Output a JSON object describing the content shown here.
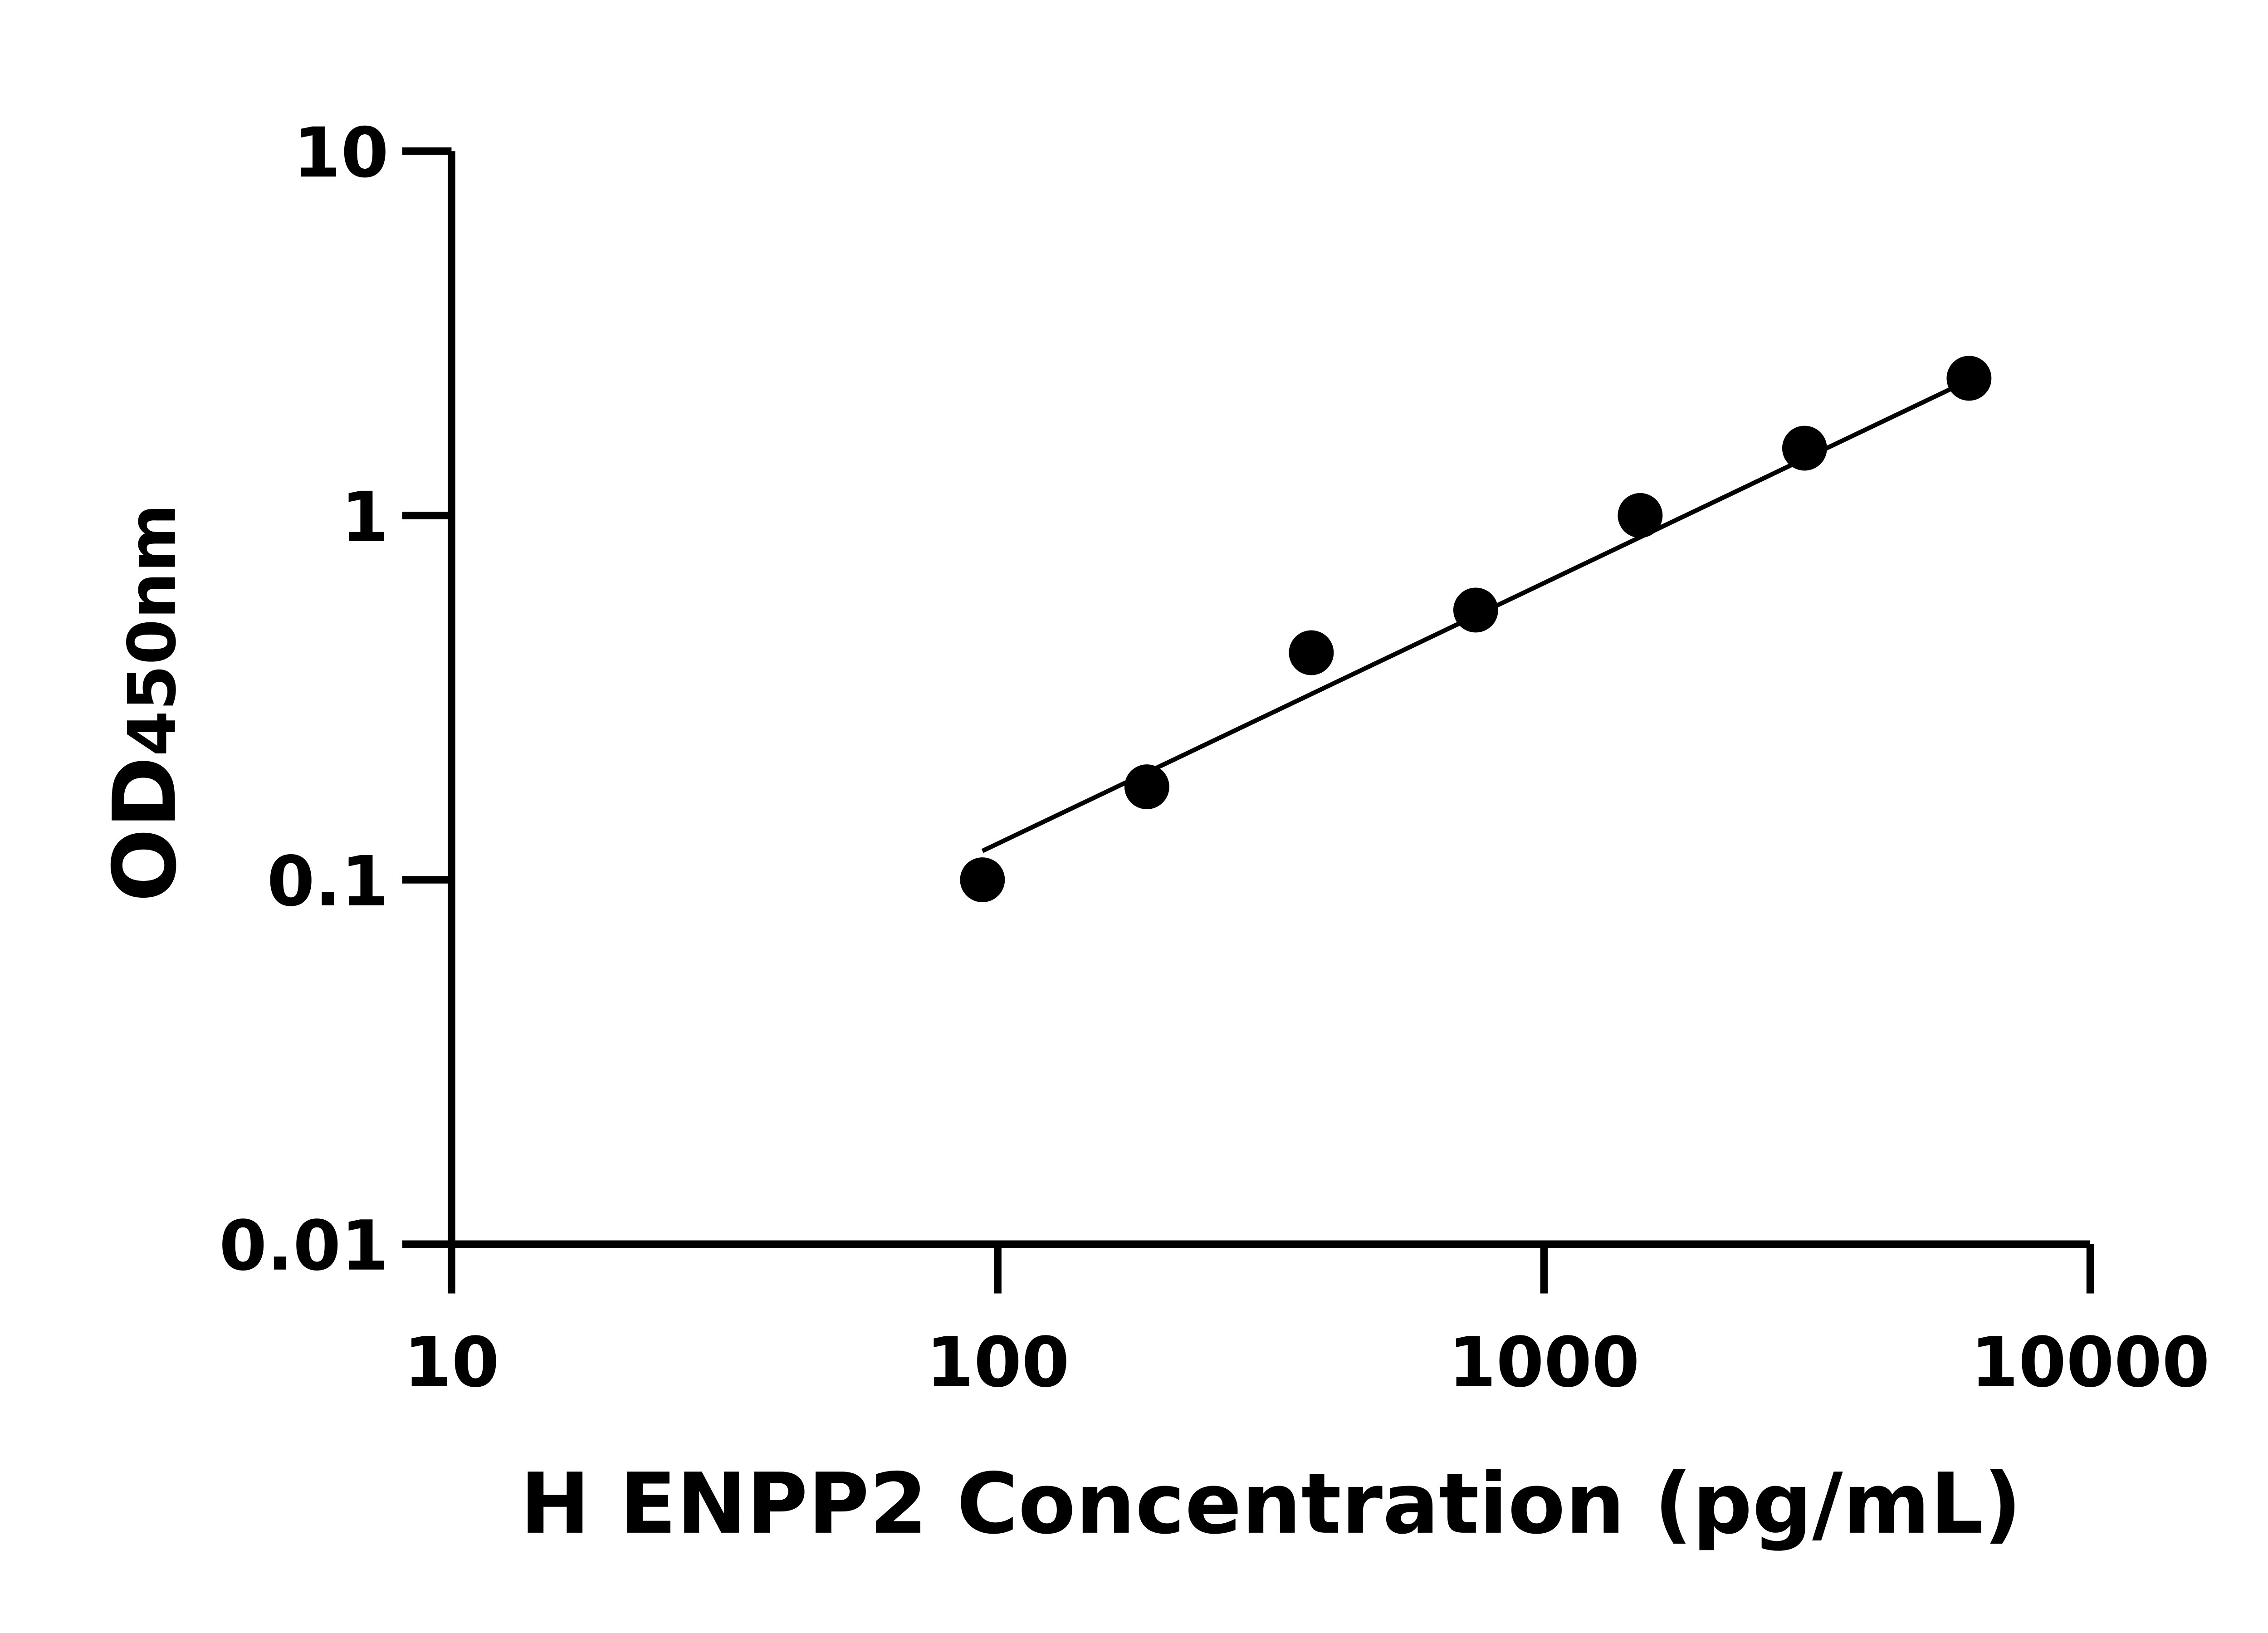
{
  "chart_data": {
    "type": "scatter",
    "title": "",
    "xlabel": "H ENPP2 Concentration (pg/mL)",
    "ylabel_main": "OD",
    "ylabel_sub": "450nm",
    "xscale": "log",
    "yscale": "log",
    "xlim": [
      10,
      10000
    ],
    "ylim": [
      0.01,
      10
    ],
    "xticks": [
      "10",
      "100",
      "1000",
      "10000"
    ],
    "yticks": [
      "0.01",
      "0.1",
      "1",
      "10"
    ],
    "grid": false,
    "legend": "none",
    "points": [
      {
        "x": 93.75,
        "y": 0.1
      },
      {
        "x": 187.5,
        "y": 0.18
      },
      {
        "x": 375,
        "y": 0.42
      },
      {
        "x": 750,
        "y": 0.55
      },
      {
        "x": 1500,
        "y": 1.0
      },
      {
        "x": 3000,
        "y": 1.53
      },
      {
        "x": 6000,
        "y": 2.38
      }
    ],
    "fit_line": [
      {
        "x": 93.75,
        "y": 0.12
      },
      {
        "x": 6000,
        "y": 2.35
      }
    ],
    "colors": {
      "points": "#000000",
      "line": "#000000",
      "axes": "#000000"
    }
  }
}
